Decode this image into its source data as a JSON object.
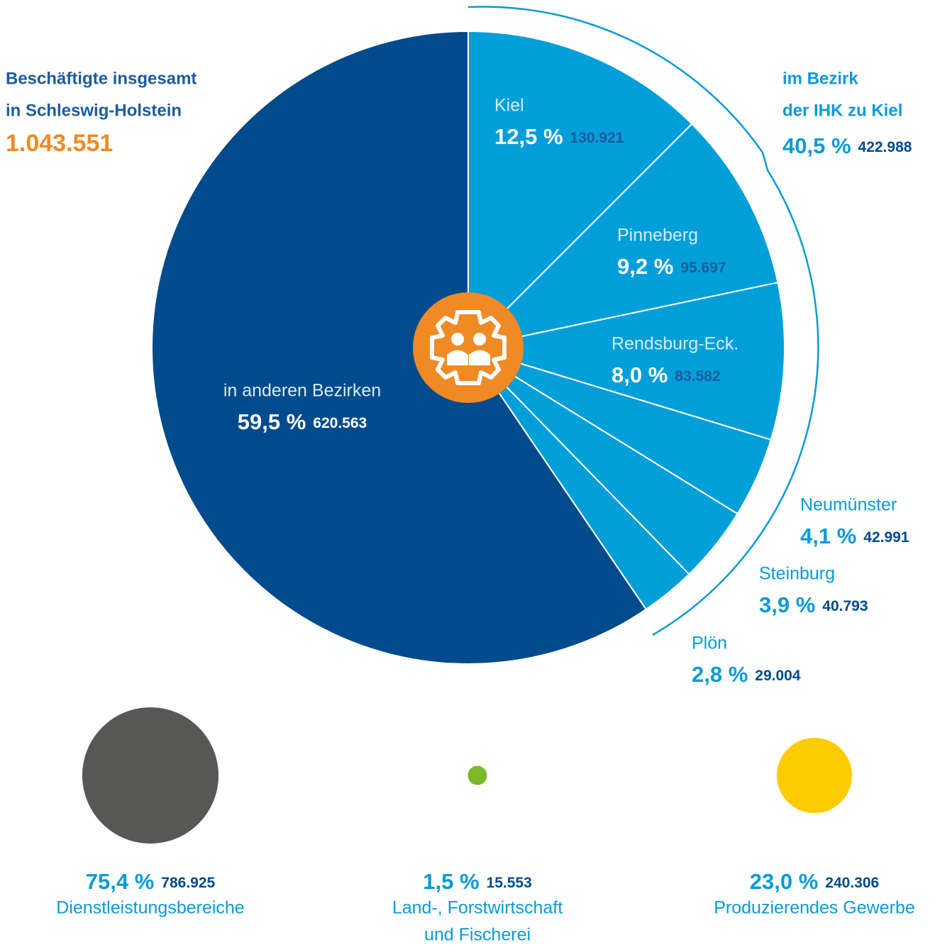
{
  "chart_data": [
    {
      "type": "pie",
      "title": [
        "Beschäftigte insgesamt",
        "in Schleswig-Holstein"
      ],
      "total": 1043551,
      "total_label": "1.043.551",
      "categories": [
        "Kiel",
        "Pinneberg",
        "Rendsburg-Eck.",
        "Neumünster",
        "Steinburg",
        "Plön",
        "in anderen Bezirken"
      ],
      "values": [
        12.5,
        9.2,
        8.0,
        4.1,
        3.9,
        2.8,
        59.5
      ],
      "value_labels": [
        "12,5 %",
        "9,2 %",
        "8,0 %",
        "4,1 %",
        "3,9 %",
        "2,8 %",
        "59,5 %"
      ],
      "counts": [
        130921,
        95697,
        83582,
        42991,
        40793,
        29004,
        620563
      ],
      "count_labels": [
        "130.921",
        "95.697",
        "83.582",
        "42.991",
        "40.793",
        "29.004",
        "620.563"
      ],
      "colors": [
        "#009fd9",
        "#009fd9",
        "#009fd9",
        "#009fd9",
        "#009fd9",
        "#009fd9",
        "#004b8b"
      ],
      "group": {
        "label": [
          "im Bezirk",
          "der IHK zu Kiel"
        ],
        "value": 40.5,
        "value_label": "40,5 %",
        "count": 422988,
        "count_label": "422.988"
      }
    },
    {
      "type": "bubble",
      "categories": [
        [
          "Dienstleistungsbereiche"
        ],
        [
          "Land-, Forstwirtschaft",
          "und Fischerei"
        ],
        [
          "Produzierendes Gewerbe"
        ]
      ],
      "values": [
        75.4,
        1.5,
        23.0
      ],
      "value_labels": [
        "75,4 %",
        "1,5 %",
        "23,0 %"
      ],
      "counts": [
        786925,
        15553,
        240306
      ],
      "count_labels": [
        "786.925",
        "15.553",
        "240.306"
      ],
      "colors": [
        "#575756",
        "#7ab929",
        "#fdcc00"
      ]
    }
  ]
}
